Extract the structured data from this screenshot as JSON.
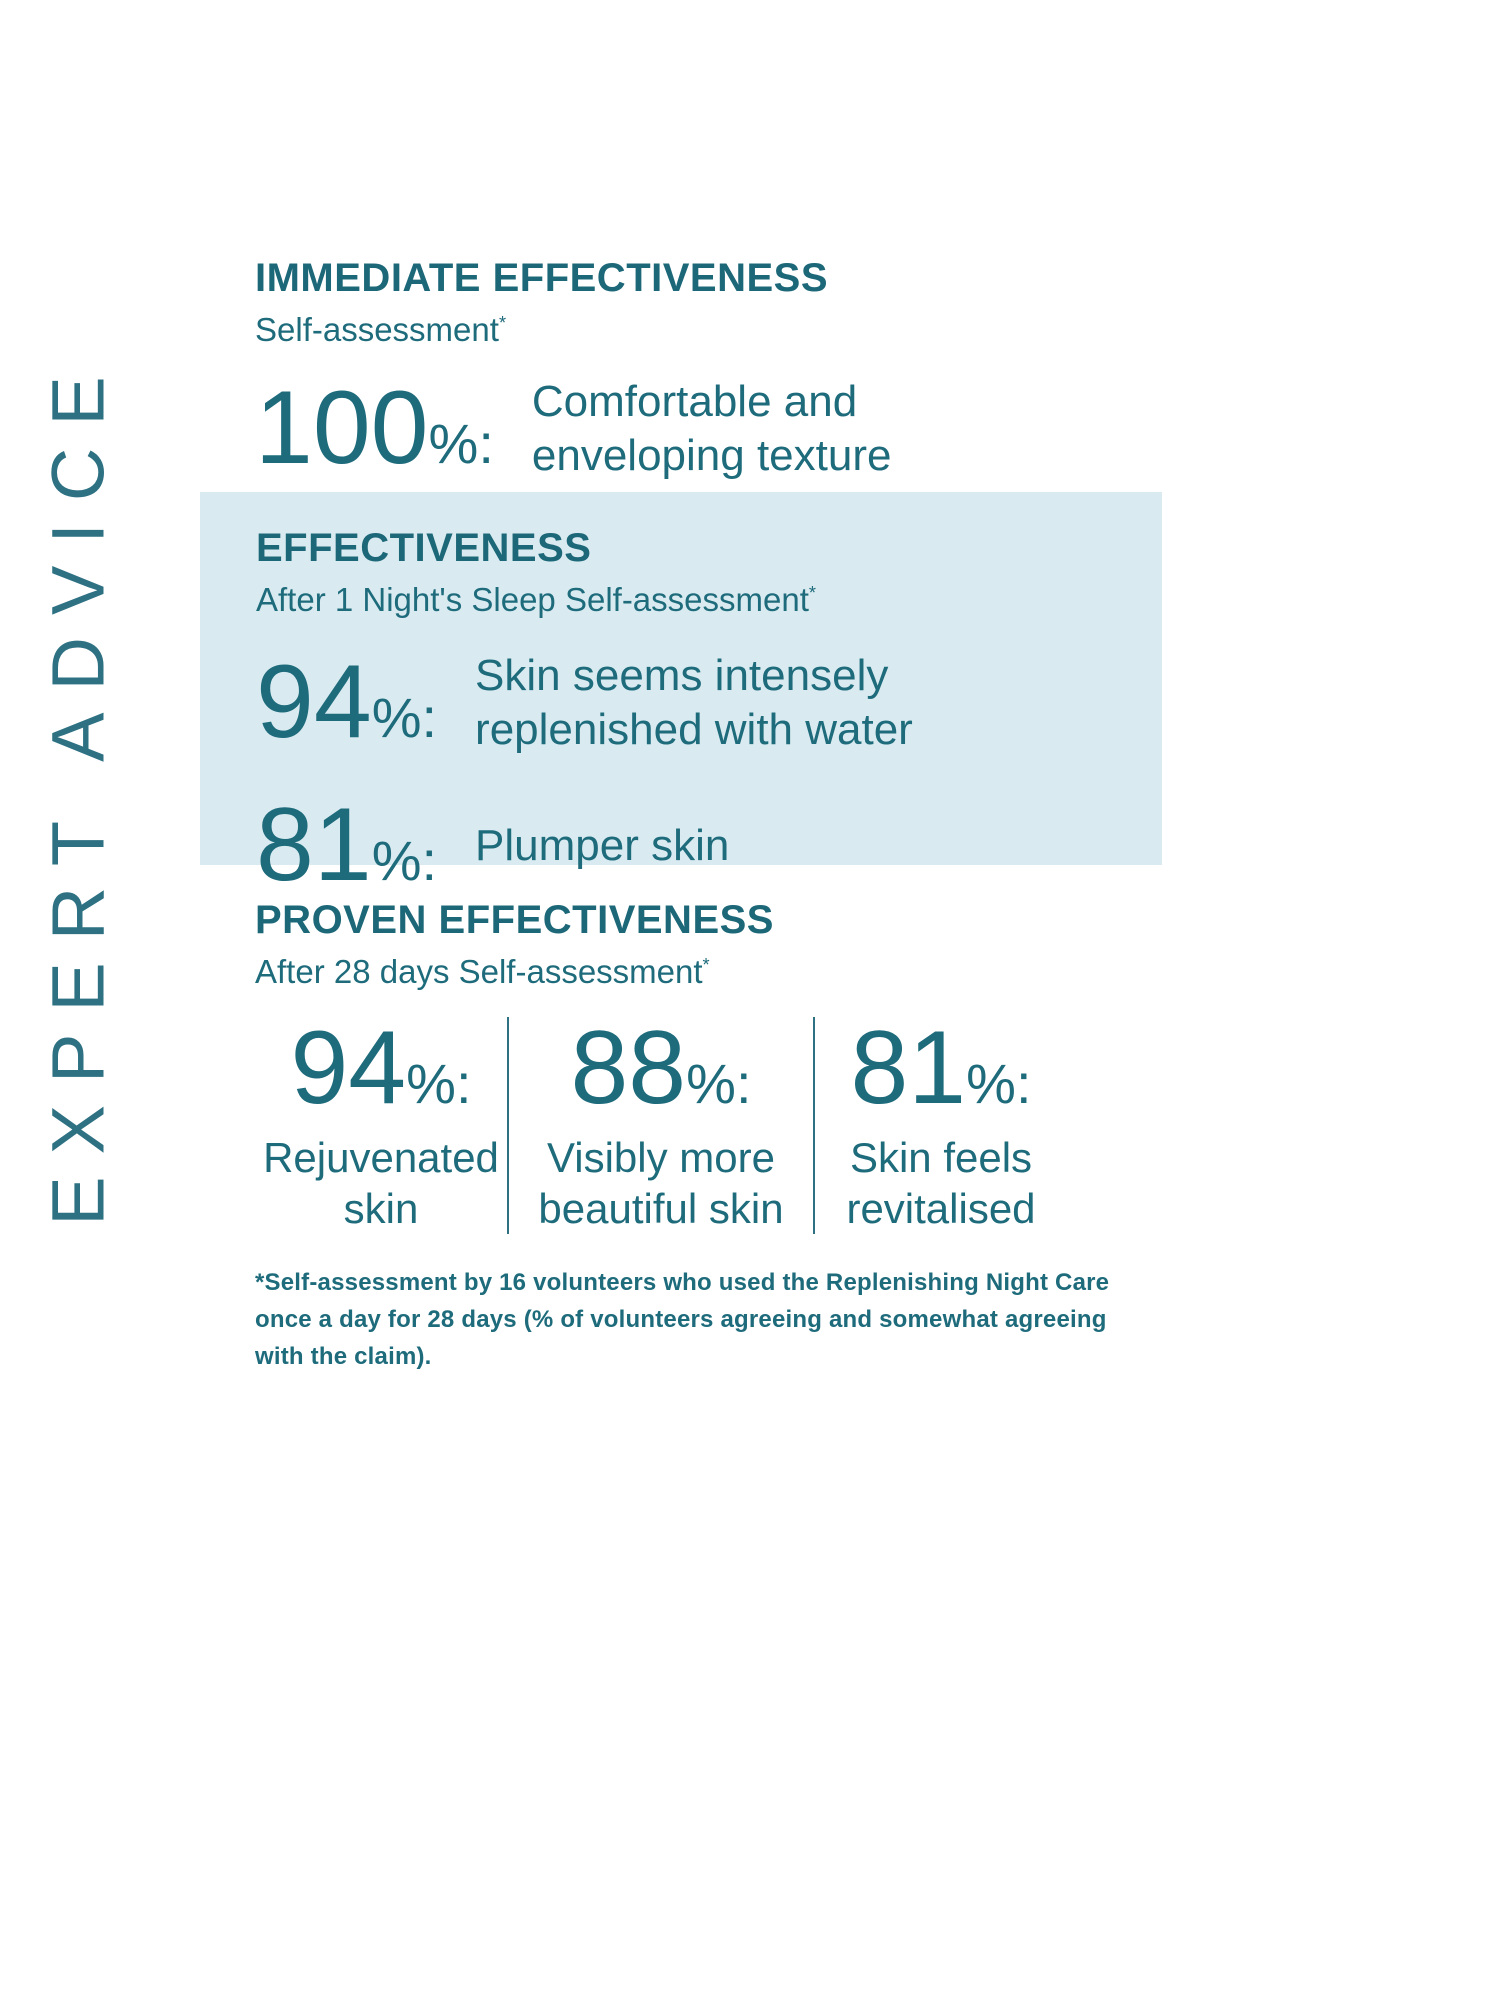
{
  "colors": {
    "accent_teal": "#1e6b7c",
    "banner_teal": "#2d7183",
    "panel_background": "#d9ebf1",
    "page_background": "#ffffff"
  },
  "poster": {
    "vertical_text": "EXPERT ADVICE",
    "asterisk": "*",
    "sections": [
      {
        "title": "IMMEDIATE EFFECTIVENESS",
        "subtitle": "Self-assessment",
        "stats": [
          {
            "value": "100",
            "suffix": "%:",
            "claim": "Comfortable and enveloping texture"
          }
        ]
      },
      {
        "title": "EFFECTIVENESS",
        "subtitle": "After 1 Night's Sleep Self-assessment",
        "stats": [
          {
            "value": "94",
            "suffix": "%:",
            "claim": "Skin seems intensely replenished with water"
          },
          {
            "value": "81",
            "suffix": "%:",
            "claim": "Plumper skin"
          }
        ]
      },
      {
        "title": "PROVEN EFFECTIVENESS",
        "subtitle": "After 28 days Self-assessment",
        "stats": [
          {
            "value": "94",
            "suffix": "%:",
            "claim": "Rejuvenated skin"
          },
          {
            "value": "88",
            "suffix": "%:",
            "claim": "Visibly more beautiful skin"
          },
          {
            "value": "81",
            "suffix": "%:",
            "claim": "Skin feels revitalised"
          }
        ]
      }
    ],
    "footnote": "*Self-assessment by 16 volunteers who used the Replenishing Night Care once a day for 28 days (% of volunteers agreeing and somewhat agreeing with the claim)."
  }
}
